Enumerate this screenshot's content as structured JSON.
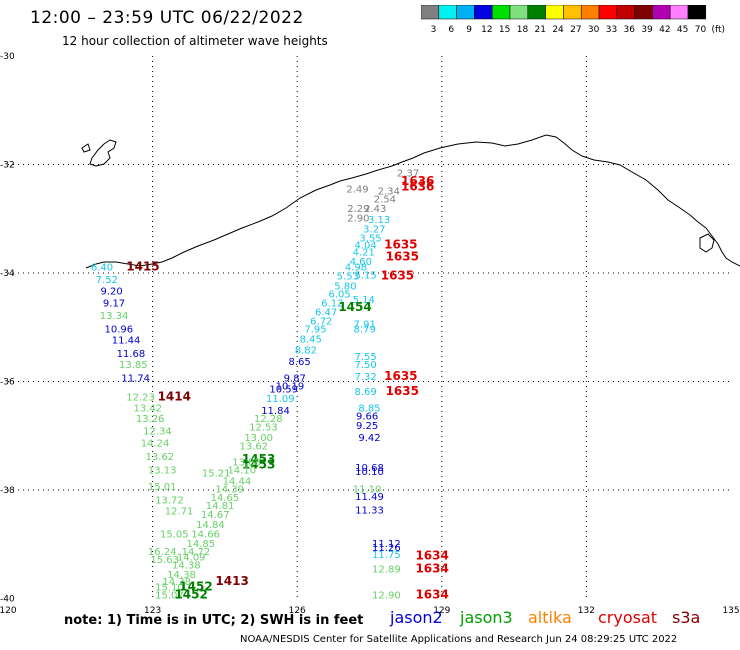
{
  "header": {
    "title": "12:00  –  23:59 UTC 06/22/2022",
    "subtitle": "12 hour collection of altimeter wave heights"
  },
  "colorbar": {
    "colors": [
      "#808080",
      "#00f0f0",
      "#00b0f0",
      "#0000e0",
      "#00e000",
      "#80e080",
      "#008000",
      "#ffff00",
      "#ffc000",
      "#ff8000",
      "#ff0000",
      "#c00000",
      "#800000",
      "#b000b0",
      "#ff80ff",
      "#000000"
    ],
    "labels": [
      "3",
      "6",
      "9",
      "12",
      "15",
      "18",
      "21",
      "24",
      "27",
      "30",
      "33",
      "36",
      "39",
      "42",
      "45",
      "70",
      "(ft)"
    ]
  },
  "map": {
    "lat_labels": [
      {
        "lat": -30,
        "text": "-30"
      },
      {
        "lat": -32,
        "text": "-32"
      },
      {
        "lat": -34,
        "text": "-34"
      },
      {
        "lat": -36,
        "text": "-36"
      },
      {
        "lat": -38,
        "text": "-38"
      },
      {
        "lat": -40,
        "text": "-40"
      }
    ],
    "lon_labels": [
      {
        "lon": 120,
        "text": "120"
      },
      {
        "lon": 123,
        "text": "123"
      },
      {
        "lon": 126,
        "text": "126"
      },
      {
        "lon": 129,
        "text": "129"
      },
      {
        "lon": 132,
        "text": "132"
      },
      {
        "lon": 135,
        "text": "135"
      }
    ],
    "labels": [
      {
        "t": "2.37",
        "lon": 128.3,
        "lat": -32.22,
        "c": "gray"
      },
      {
        "t": "1636",
        "lon": 128.5,
        "lat": -32.38,
        "c": "red"
      },
      {
        "t": "1636",
        "lon": 128.5,
        "lat": -32.48,
        "c": "red"
      },
      {
        "t": "2.49",
        "lon": 127.25,
        "lat": -32.52,
        "c": "gray"
      },
      {
        "t": "2.34",
        "lon": 127.9,
        "lat": -32.55,
        "c": "gray"
      },
      {
        "t": "2.54",
        "lon": 127.82,
        "lat": -32.7,
        "c": "gray"
      },
      {
        "t": "2.29",
        "lon": 127.27,
        "lat": -32.88,
        "c": "gray"
      },
      {
        "t": "2.43",
        "lon": 127.62,
        "lat": -32.88,
        "c": "gray"
      },
      {
        "t": "2.90",
        "lon": 127.27,
        "lat": -33.05,
        "c": "gray"
      },
      {
        "t": "3.13",
        "lon": 127.7,
        "lat": -33.08,
        "c": "cyan"
      },
      {
        "t": "3.27",
        "lon": 127.6,
        "lat": -33.25,
        "c": "cyan"
      },
      {
        "t": "3.55",
        "lon": 127.52,
        "lat": -33.42,
        "c": "cyan"
      },
      {
        "t": "1635",
        "lon": 128.15,
        "lat": -33.55,
        "c": "red"
      },
      {
        "t": "4.04",
        "lon": 127.42,
        "lat": -33.55,
        "c": "cyan"
      },
      {
        "t": "4.21",
        "lon": 127.38,
        "lat": -33.68,
        "c": "cyan"
      },
      {
        "t": "1635",
        "lon": 128.18,
        "lat": -33.77,
        "c": "red"
      },
      {
        "t": "4.60",
        "lon": 127.32,
        "lat": -33.85,
        "c": "cyan"
      },
      {
        "t": "4.98",
        "lon": 127.22,
        "lat": -33.95,
        "c": "cyan"
      },
      {
        "t": "5.15",
        "lon": 127.42,
        "lat": -34.1,
        "c": "cyan"
      },
      {
        "t": "1635",
        "lon": 128.08,
        "lat": -34.12,
        "c": "red"
      },
      {
        "t": "5.53",
        "lon": 127.05,
        "lat": -34.12,
        "c": "cyan"
      },
      {
        "t": "5.80",
        "lon": 127.0,
        "lat": -34.3,
        "c": "cyan"
      },
      {
        "t": "6.05",
        "lon": 126.88,
        "lat": -34.45,
        "c": "cyan"
      },
      {
        "t": "6.12",
        "lon": 126.73,
        "lat": -34.62,
        "c": "cyan"
      },
      {
        "t": "5.14",
        "lon": 127.38,
        "lat": -34.55,
        "c": "cyan"
      },
      {
        "t": "1454",
        "lon": 127.2,
        "lat": -34.7,
        "c": "green"
      },
      {
        "t": "6.47",
        "lon": 126.6,
        "lat": -34.78,
        "c": "cyan"
      },
      {
        "t": "6.72",
        "lon": 126.5,
        "lat": -34.95,
        "c": "cyan"
      },
      {
        "t": "7.91",
        "lon": 127.4,
        "lat": -35.0,
        "c": "cyan"
      },
      {
        "t": "8.79",
        "lon": 127.4,
        "lat": -35.1,
        "c": "cyan"
      },
      {
        "t": "7.95",
        "lon": 126.38,
        "lat": -35.1,
        "c": "cyan"
      },
      {
        "t": "8.45",
        "lon": 126.28,
        "lat": -35.28,
        "c": "cyan"
      },
      {
        "t": "8.82",
        "lon": 126.18,
        "lat": -35.48,
        "c": "cyan"
      },
      {
        "t": "8.65",
        "lon": 126.05,
        "lat": -35.7,
        "c": "blue"
      },
      {
        "t": "7.55",
        "lon": 127.42,
        "lat": -35.6,
        "c": "cyan"
      },
      {
        "t": "7.50",
        "lon": 127.42,
        "lat": -35.75,
        "c": "cyan"
      },
      {
        "t": "1635",
        "lon": 128.15,
        "lat": -35.97,
        "c": "red"
      },
      {
        "t": "7.32",
        "lon": 127.42,
        "lat": -35.97,
        "c": "cyan"
      },
      {
        "t": "9.87",
        "lon": 125.95,
        "lat": -36.0,
        "c": "blue"
      },
      {
        "t": "10.19",
        "lon": 125.85,
        "lat": -36.15,
        "c": "blue"
      },
      {
        "t": "10.59",
        "lon": 125.72,
        "lat": -36.2,
        "c": "blue"
      },
      {
        "t": "1635",
        "lon": 128.18,
        "lat": -36.25,
        "c": "red"
      },
      {
        "t": "8.69",
        "lon": 127.42,
        "lat": -36.25,
        "c": "cyan"
      },
      {
        "t": "11.09",
        "lon": 125.65,
        "lat": -36.38,
        "c": "cyan"
      },
      {
        "t": "8.85",
        "lon": 127.5,
        "lat": -36.55,
        "c": "cyan"
      },
      {
        "t": "11.84",
        "lon": 125.55,
        "lat": -36.6,
        "c": "blue"
      },
      {
        "t": "9.66",
        "lon": 127.45,
        "lat": -36.7,
        "c": "blue"
      },
      {
        "t": "12.28",
        "lon": 125.4,
        "lat": -36.75,
        "c": "lgreen"
      },
      {
        "t": "9.25",
        "lon": 127.45,
        "lat": -36.88,
        "c": "blue"
      },
      {
        "t": "12.53",
        "lon": 125.3,
        "lat": -36.9,
        "c": "lgreen"
      },
      {
        "t": "13.00",
        "lon": 125.2,
        "lat": -37.1,
        "c": "lgreen"
      },
      {
        "t": "9.42",
        "lon": 127.5,
        "lat": -37.1,
        "c": "blue"
      },
      {
        "t": "13.62",
        "lon": 125.1,
        "lat": -37.25,
        "c": "lgreen"
      },
      {
        "t": "1453",
        "lon": 125.2,
        "lat": -37.5,
        "c": "green"
      },
      {
        "t": "1453",
        "lon": 125.2,
        "lat": -37.6,
        "c": "green"
      },
      {
        "t": "13.88",
        "lon": 124.95,
        "lat": -37.55,
        "c": "lgreen"
      },
      {
        "t": "10.68",
        "lon": 127.5,
        "lat": -37.65,
        "c": "blue"
      },
      {
        "t": "10.10",
        "lon": 127.5,
        "lat": -37.72,
        "c": "blue"
      },
      {
        "t": "15.21",
        "lon": 124.32,
        "lat": -37.75,
        "c": "lgreen"
      },
      {
        "t": "14.10",
        "lon": 124.85,
        "lat": -37.7,
        "c": "lgreen"
      },
      {
        "t": "14.44",
        "lon": 124.75,
        "lat": -37.9,
        "c": "lgreen"
      },
      {
        "t": "14.39",
        "lon": 124.6,
        "lat": -38.05,
        "c": "lgreen"
      },
      {
        "t": "11.10",
        "lon": 127.45,
        "lat": -38.05,
        "c": "lgreen"
      },
      {
        "t": "11.49",
        "lon": 127.5,
        "lat": -38.18,
        "c": "blue"
      },
      {
        "t": "14.65",
        "lon": 124.5,
        "lat": -38.2,
        "c": "lgreen"
      },
      {
        "t": "14.81",
        "lon": 124.4,
        "lat": -38.35,
        "c": "lgreen"
      },
      {
        "t": "11.33",
        "lon": 127.5,
        "lat": -38.43,
        "c": "blue"
      },
      {
        "t": "14.67",
        "lon": 124.3,
        "lat": -38.52,
        "c": "lgreen"
      },
      {
        "t": "14.84",
        "lon": 124.2,
        "lat": -38.7,
        "c": "lgreen"
      },
      {
        "t": "14.66",
        "lon": 124.1,
        "lat": -38.88,
        "c": "lgreen"
      },
      {
        "t": "14.85",
        "lon": 124.0,
        "lat": -39.05,
        "c": "lgreen"
      },
      {
        "t": "11.12",
        "lon": 127.85,
        "lat": -39.05,
        "c": "blue"
      },
      {
        "t": "11.26",
        "lon": 127.85,
        "lat": -39.12,
        "c": "blue"
      },
      {
        "t": "14.72",
        "lon": 123.9,
        "lat": -39.2,
        "c": "lgreen"
      },
      {
        "t": "11.75",
        "lon": 127.85,
        "lat": -39.25,
        "c": "cyan"
      },
      {
        "t": "1634",
        "lon": 128.8,
        "lat": -39.28,
        "c": "red"
      },
      {
        "t": "14.09",
        "lon": 123.8,
        "lat": -39.3,
        "c": "lgreen"
      },
      {
        "t": "14.38",
        "lon": 123.7,
        "lat": -39.45,
        "c": "lgreen"
      },
      {
        "t": "12.89",
        "lon": 127.85,
        "lat": -39.52,
        "c": "lgreen"
      },
      {
        "t": "1634",
        "lon": 128.8,
        "lat": -39.52,
        "c": "red"
      },
      {
        "t": "14.38",
        "lon": 123.6,
        "lat": -39.62,
        "c": "lgreen"
      },
      {
        "t": "14.38",
        "lon": 123.5,
        "lat": -39.75,
        "c": "lgreen"
      },
      {
        "t": "1413",
        "lon": 124.65,
        "lat": -39.75,
        "c": "dred"
      },
      {
        "t": "15.10",
        "lon": 123.35,
        "lat": -39.85,
        "c": "lgreen"
      },
      {
        "t": "1452",
        "lon": 123.9,
        "lat": -39.85,
        "c": "green"
      },
      {
        "t": "15.07",
        "lon": 123.35,
        "lat": -40.0,
        "c": "lgreen"
      },
      {
        "t": "1452",
        "lon": 123.8,
        "lat": -40.0,
        "c": "green"
      },
      {
        "t": "12.90",
        "lon": 127.85,
        "lat": -40.0,
        "c": "lgreen"
      },
      {
        "t": "1634",
        "lon": 128.8,
        "lat": -40.0,
        "c": "red"
      },
      {
        "t": "15.63",
        "lon": 123.25,
        "lat": -39.35,
        "c": "lgreen"
      },
      {
        "t": "16.24",
        "lon": 123.2,
        "lat": -39.2,
        "c": "lgreen"
      },
      {
        "t": "15.05",
        "lon": 123.45,
        "lat": -38.88,
        "c": "lgreen"
      },
      {
        "t": "13.72",
        "lon": 123.35,
        "lat": -38.25,
        "c": "lgreen"
      },
      {
        "t": "12.71",
        "lon": 123.55,
        "lat": -38.45,
        "c": "lgreen"
      },
      {
        "t": "15.01",
        "lon": 123.2,
        "lat": -38.0,
        "c": "lgreen"
      },
      {
        "t": "13.13",
        "lon": 123.2,
        "lat": -37.7,
        "c": "lgreen"
      },
      {
        "t": "13.62",
        "lon": 123.15,
        "lat": -37.45,
        "c": "lgreen"
      },
      {
        "t": "14.24",
        "lon": 123.05,
        "lat": -37.2,
        "c": "lgreen"
      },
      {
        "t": "12.34",
        "lon": 123.1,
        "lat": -36.98,
        "c": "lgreen"
      },
      {
        "t": "13.26",
        "lon": 122.95,
        "lat": -36.75,
        "c": "lgreen"
      },
      {
        "t": "13.42",
        "lon": 122.9,
        "lat": -36.55,
        "c": "lgreen"
      },
      {
        "t": "12.23",
        "lon": 122.75,
        "lat": -36.35,
        "c": "lgreen"
      },
      {
        "t": "1414",
        "lon": 123.45,
        "lat": -36.35,
        "c": "dred"
      },
      {
        "t": "11.74",
        "lon": 122.65,
        "lat": -36.0,
        "c": "blue"
      },
      {
        "t": "13.85",
        "lon": 122.6,
        "lat": -35.75,
        "c": "lgreen"
      },
      {
        "t": "11.68",
        "lon": 122.55,
        "lat": -35.55,
        "c": "blue"
      },
      {
        "t": "11.44",
        "lon": 122.45,
        "lat": -35.3,
        "c": "blue"
      },
      {
        "t": "10.96",
        "lon": 122.3,
        "lat": -35.1,
        "c": "blue"
      },
      {
        "t": "13.34",
        "lon": 122.2,
        "lat": -34.85,
        "c": "lgreen"
      },
      {
        "t": "9.17",
        "lon": 122.2,
        "lat": -34.62,
        "c": "blue"
      },
      {
        "t": "9.20",
        "lon": 122.15,
        "lat": -34.4,
        "c": "blue"
      },
      {
        "t": "7.52",
        "lon": 122.05,
        "lat": -34.18,
        "c": "cyan"
      },
      {
        "t": "6.40",
        "lon": 121.95,
        "lat": -33.95,
        "c": "cyan"
      },
      {
        "t": "1415",
        "lon": 122.8,
        "lat": -33.95,
        "c": "dred"
      }
    ]
  },
  "legend": {
    "note": "note:  1)  Time is in UTC;  2)  SWH is in feet",
    "satellites": [
      {
        "name": "jason2",
        "color": "#0000e0"
      },
      {
        "name": "jason3",
        "color": "#00a000"
      },
      {
        "name": "altika",
        "color": "#ff8000"
      },
      {
        "name": "cryosat",
        "color": "#e00000"
      },
      {
        "name": "s3a",
        "color": "#800000"
      }
    ]
  },
  "footer": {
    "credit": "NOAA/NESDIS Center for Satellite Applications and Research    Jun 24 08:29:25 UTC 2022"
  },
  "palette": {
    "gray": "#808080",
    "cyan": "#18c8e8",
    "blue": "#0000d0",
    "lgreen": "#66d066",
    "green": "#008000",
    "red": "#e00000",
    "dred": "#800000"
  }
}
